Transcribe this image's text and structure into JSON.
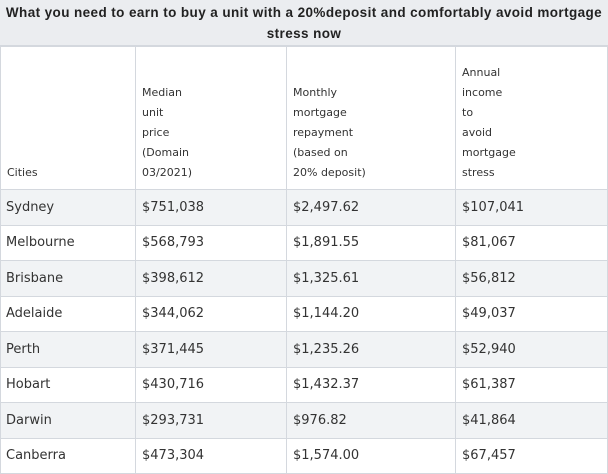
{
  "title": "What you need to earn to buy a unit with a 20%deposit and comfortably avoid mortgage stress now",
  "columns": [
    {
      "lines": [
        "Cities"
      ]
    },
    {
      "lines": [
        "Median",
        "unit",
        "price",
        "(Domain",
        "03/2021)"
      ]
    },
    {
      "lines": [
        "Monthly",
        "mortgage",
        "repayment",
        "(based on",
        "20% deposit)"
      ]
    },
    {
      "lines": [
        "Annual",
        "income",
        "to",
        "avoid",
        "mortgage",
        "stress"
      ]
    }
  ],
  "rows": [
    {
      "city": "Sydney",
      "price": "$751,038",
      "repayment": "$2,497.62",
      "income": "$107,041"
    },
    {
      "city": "Melbourne",
      "price": "$568,793",
      "repayment": "$1,891.55",
      "income": "$81,067"
    },
    {
      "city": "Brisbane",
      "price": "$398,612",
      "repayment": "$1,325.61",
      "income": "$56,812"
    },
    {
      "city": "Adelaide",
      "price": "$344,062",
      "repayment": "$1,144.20",
      "income": "$49,037"
    },
    {
      "city": "Perth",
      "price": "$371,445",
      "repayment": "$1,235.26",
      "income": "$52,940"
    },
    {
      "city": "Hobart",
      "price": "$430,716",
      "repayment": "$1,432.37",
      "income": "$61,387"
    },
    {
      "city": "Darwin",
      "price": "$293,731",
      "repayment": "$976.82",
      "income": "$41,864"
    },
    {
      "city": "Canberra",
      "price": "$473,304",
      "repayment": "$1,574.00",
      "income": "$67,457"
    }
  ]
}
